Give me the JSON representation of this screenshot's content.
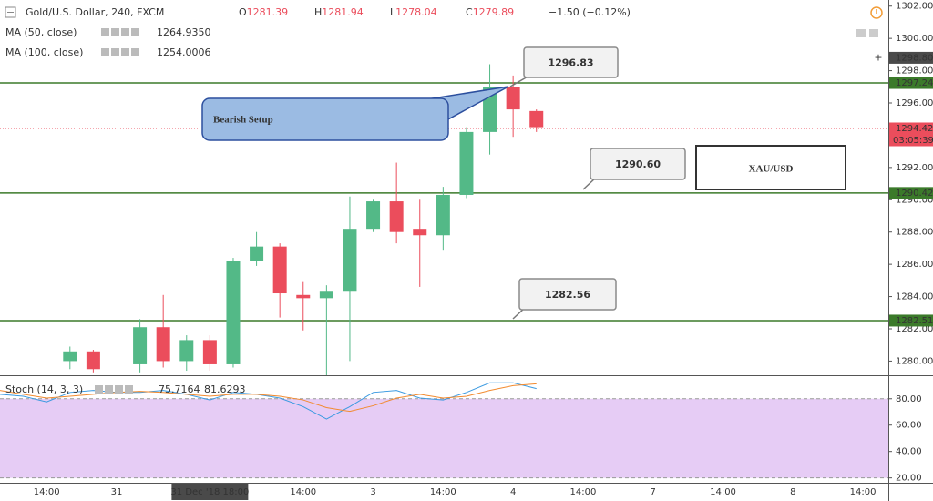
{
  "header": {
    "symbol": "Gold/U.S. Dollar, 240, FXCM",
    "ohlc": [
      {
        "key": "O",
        "value": "1281.39"
      },
      {
        "key": "H",
        "value": "1281.94"
      },
      {
        "key": "L",
        "value": "1278.04"
      },
      {
        "key": "C",
        "value": "1279.89"
      }
    ],
    "change": "−1.50 (−0.12%)"
  },
  "indicators": [
    {
      "name": "MA (50, close)",
      "value": "1264.9350",
      "color": "#e5c400"
    },
    {
      "name": "MA (100, close)",
      "value": "1254.0006",
      "color": "#2e9e3a"
    }
  ],
  "chart_data": [
    {
      "type": "candlestick",
      "x": [
        0,
        1,
        3,
        4,
        5,
        6,
        7,
        8,
        9,
        10,
        11,
        12,
        13,
        14,
        15,
        16,
        17,
        18,
        19,
        20
      ],
      "open": [
        1280.0,
        1280.6,
        1279.8,
        1282.1,
        1280.0,
        1281.3,
        1279.8,
        1286.2,
        1287.1,
        1284.1,
        1283.9,
        1284.3,
        1288.2,
        1289.9,
        1288.2,
        1287.8,
        1290.3,
        1294.2,
        1297.0,
        1295.5
      ],
      "high": [
        1280.9,
        1280.7,
        1282.6,
        1284.1,
        1281.6,
        1281.6,
        1286.4,
        1288.0,
        1287.3,
        1284.9,
        1284.7,
        1290.2,
        1290.0,
        1292.3,
        1290.0,
        1290.8,
        1294.5,
        1298.4,
        1297.7,
        1295.6
      ],
      "low": [
        1279.5,
        1279.3,
        1279.3,
        1279.6,
        1279.4,
        1279.4,
        1279.6,
        1285.9,
        1282.7,
        1281.9,
        1279.1,
        1280.0,
        1288.0,
        1287.3,
        1284.6,
        1286.9,
        1290.1,
        1292.8,
        1293.9,
        1294.2
      ],
      "close": [
        1280.6,
        1279.5,
        1282.1,
        1280.0,
        1281.3,
        1279.8,
        1286.2,
        1287.1,
        1284.2,
        1283.9,
        1284.3,
        1288.2,
        1289.9,
        1288.0,
        1287.8,
        1290.3,
        1294.2,
        1297.0,
        1295.6,
        1294.5
      ],
      "up_color": "#53b987",
      "down_color": "#eb4d5c",
      "xlim": [
        -3,
        35.09
      ],
      "ylim": [
        1279.12,
        1302.38
      ],
      "yticks": [
        {
          "value": 1280,
          "label": "1280.00"
        },
        {
          "value": 1282,
          "label": "1282.00"
        },
        {
          "value": 1284,
          "label": "1284.00"
        },
        {
          "value": 1286,
          "label": "1286.00"
        },
        {
          "value": 1288,
          "label": "1288.00"
        },
        {
          "value": 1290,
          "label": "1290.00"
        },
        {
          "value": 1292,
          "label": "1292.00"
        },
        {
          "value": 1296,
          "label": "1296.00"
        },
        {
          "value": 1298,
          "label": "1298.00"
        },
        {
          "value": 1300,
          "label": "1300.00"
        },
        {
          "value": 1302,
          "label": "1302.00"
        }
      ],
      "xticks": [
        {
          "value": -1,
          "label": "14:00"
        },
        {
          "value": 2,
          "label": "31"
        },
        {
          "value": 6,
          "label": "31 Dec '18   18:00",
          "highlight": true
        },
        {
          "value": 10,
          "label": "14:00"
        },
        {
          "value": 13,
          "label": "3"
        },
        {
          "value": 16,
          "label": "14:00"
        },
        {
          "value": 19,
          "label": "4"
        },
        {
          "value": 22,
          "label": "14:00"
        },
        {
          "value": 25,
          "label": "7"
        },
        {
          "value": 28,
          "label": "14:00"
        },
        {
          "value": 31,
          "label": "8"
        },
        {
          "value": 34,
          "label": "14:00"
        }
      ],
      "price_labels": [
        {
          "value": 1298.8,
          "label": "1298.80",
          "color": "#4a4a4a"
        },
        {
          "value": 1297.24,
          "label": "1297.24",
          "color": "#3b7a2a",
          "line": "solid"
        },
        {
          "value": 1294.42,
          "label": "1294.42",
          "color": "#eb4d5c",
          "line": "dotted",
          "countdown": "03:05:39"
        },
        {
          "value": 1290.42,
          "label": "1290.42",
          "color": "#3b7a2a",
          "line": "solid"
        },
        {
          "value": 1282.51,
          "label": "1282.51",
          "color": "#3b7a2a",
          "line": "solid"
        }
      ],
      "annotations": [
        {
          "text": "1296.83",
          "style": "callout"
        },
        {
          "text": "1290.60",
          "style": "callout"
        },
        {
          "text": "1282.56",
          "style": "callout"
        },
        {
          "text": "Bearish Setup",
          "style": "balloon"
        },
        {
          "text": "XAU/USD",
          "style": "box"
        }
      ]
    },
    {
      "type": "line",
      "title": "Stoch (14, 3, 3)",
      "x": [
        -3,
        -2,
        -1,
        0,
        1,
        2,
        3,
        4,
        5,
        6,
        7,
        8,
        9,
        10,
        11,
        12,
        13,
        14,
        15,
        16,
        17,
        18,
        19,
        20
      ],
      "series": [
        {
          "color": "#3b9ae1",
          "legend_value": "75.7164",
          "values": [
            83.4,
            81.9,
            77.6,
            84.8,
            86.3,
            84.8,
            84.8,
            86.3,
            83.4,
            79.1,
            84.8,
            83.4,
            80.5,
            74.0,
            64.6,
            74.0,
            84.8,
            86.3,
            80.5,
            79.1,
            84.8,
            92.1,
            92.1,
            87.7
          ]
        },
        {
          "color": "#f28b30",
          "legend_value": "81.6293",
          "values": [
            86.3,
            83.4,
            80.5,
            81.9,
            83.4,
            84.8,
            85.6,
            84.8,
            83.4,
            81.9,
            83.4,
            83.4,
            81.9,
            79.1,
            73.3,
            70.4,
            74.7,
            80.5,
            83.4,
            80.5,
            81.9,
            86.3,
            89.9,
            91.3
          ]
        }
      ],
      "band": [
        20,
        80
      ],
      "band_color": "#e6ccf5",
      "ylim": [
        16.3,
        97.1
      ],
      "yticks": [
        {
          "value": 20,
          "label": "20.00"
        },
        {
          "value": 40,
          "label": "40.00"
        },
        {
          "value": 60,
          "label": "60.00"
        },
        {
          "value": 80,
          "label": "80.00"
        }
      ]
    }
  ]
}
